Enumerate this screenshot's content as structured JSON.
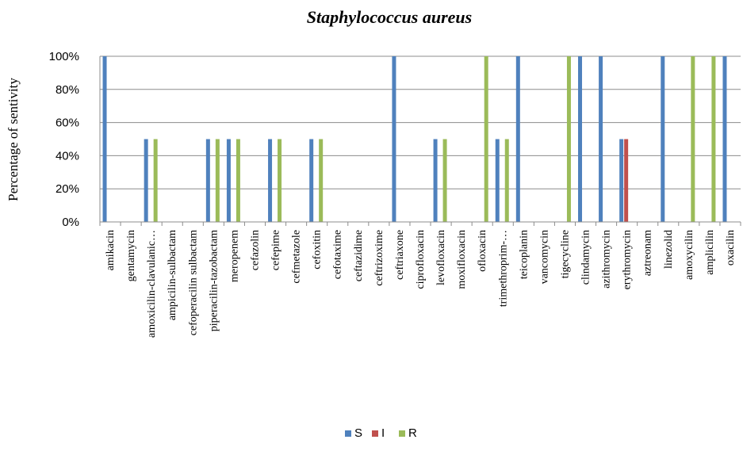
{
  "chart_data": {
    "type": "bar",
    "title": "Staphylococcus aureus",
    "xlabel": "",
    "ylabel": "Percentage of sentivity",
    "ylim": [
      0,
      100
    ],
    "yticks": [
      "0%",
      "20%",
      "40%",
      "60%",
      "80%",
      "100%"
    ],
    "grid": true,
    "legend_position": "bottom",
    "categories": [
      "amikacin",
      "gentamycin",
      "amoxicilin-clavulanic…",
      "ampicilin-sulbactam",
      "cefoperacilin sulbactam",
      "piperacilin-tazobactam",
      "meropenem",
      "cefazolin",
      "cefepime",
      "cefmetazole",
      "cefoxitin",
      "cefotaxime",
      "ceftazidime",
      "ceftrizoxime",
      "ceftriaxone",
      "ciprofloxacin",
      "levofloxacin",
      "moxifloxacin",
      "ofloxacin",
      "trimethroprim-…",
      "teicoplanin",
      "vancomycin",
      "tigecycline",
      "clindamycin",
      "azithromycin",
      "erythromycin",
      "aztreonam",
      "linezolid",
      "amoxycilin",
      "amplicilin",
      "oxacilin"
    ],
    "series": [
      {
        "name": "S",
        "color": "#4f81bd",
        "values": [
          100,
          0,
          50,
          0,
          0,
          50,
          50,
          0,
          50,
          0,
          50,
          0,
          0,
          0,
          100,
          0,
          50,
          0,
          0,
          50,
          100,
          0,
          0,
          100,
          100,
          50,
          0,
          100,
          0,
          0,
          100
        ]
      },
      {
        "name": "I",
        "color": "#c0504d",
        "values": [
          0,
          0,
          0,
          0,
          0,
          0,
          0,
          0,
          0,
          0,
          0,
          0,
          0,
          0,
          0,
          0,
          0,
          0,
          0,
          0,
          0,
          0,
          0,
          0,
          0,
          50,
          0,
          0,
          0,
          0,
          0
        ]
      },
      {
        "name": "R",
        "color": "#9bbb59",
        "values": [
          0,
          0,
          50,
          0,
          0,
          50,
          50,
          0,
          50,
          0,
          50,
          0,
          0,
          0,
          0,
          0,
          50,
          0,
          100,
          50,
          0,
          0,
          100,
          0,
          0,
          0,
          0,
          0,
          100,
          100,
          0
        ]
      }
    ]
  }
}
